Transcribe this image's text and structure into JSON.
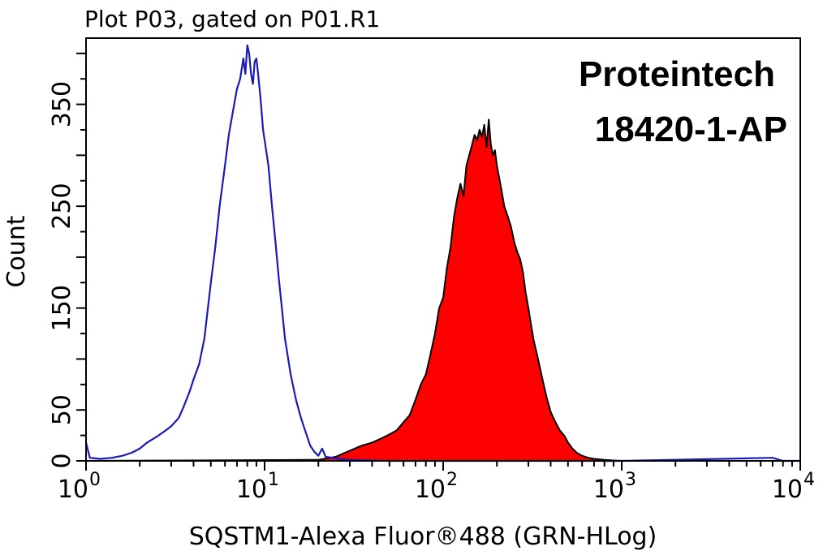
{
  "chart_data": {
    "type": "area",
    "title": "Plot P03, gated on P01.R1",
    "xlabel": "SQSTM1-Alexa Fluor®488 (GRN-HLog)",
    "ylabel": "Count",
    "x_scale": "log",
    "xlim": [
      1,
      10000
    ],
    "ylim": [
      0,
      415
    ],
    "x_ticks": [
      {
        "base": "10",
        "exp": "0",
        "value": 1
      },
      {
        "base": "10",
        "exp": "1",
        "value": 10
      },
      {
        "base": "10",
        "exp": "2",
        "value": 100
      },
      {
        "base": "10",
        "exp": "3",
        "value": 1000
      },
      {
        "base": "10",
        "exp": "4",
        "value": 10000
      }
    ],
    "y_ticks": [
      {
        "label": "0",
        "value": 0
      },
      {
        "label": "50",
        "value": 50
      },
      {
        "label": "150",
        "value": 150
      },
      {
        "label": "250",
        "value": 250
      },
      {
        "label": "350",
        "value": 350
      }
    ],
    "annotations": [
      "Proteintech",
      "18420-1-AP"
    ],
    "series": [
      {
        "role": "control",
        "color": "#1a1ab4",
        "filled": false,
        "x": [
          1,
          1.05,
          1.2,
          1.4,
          1.6,
          1.8,
          2.0,
          2.2,
          2.5,
          2.8,
          3.0,
          3.3,
          3.5,
          3.8,
          4.0,
          4.3,
          4.6,
          5.0,
          5.3,
          5.6,
          6.0,
          6.3,
          6.6,
          7.0,
          7.3,
          7.6,
          7.8,
          8.0,
          8.2,
          8.4,
          8.6,
          8.8,
          9.0,
          9.2,
          9.5,
          9.8,
          10.0,
          10.5,
          11.0,
          11.5,
          12.0,
          12.5,
          13.0,
          14.0,
          15.0,
          16.0,
          17.0,
          18.0,
          19.0,
          20.0,
          21.0,
          22.0,
          24.0,
          26.0,
          30.0,
          50.0,
          100.0,
          1000.0,
          7000.0,
          8000.0,
          10000.0
        ],
        "y": [
          18,
          3,
          2,
          3,
          5,
          8,
          12,
          18,
          24,
          30,
          34,
          42,
          52,
          68,
          80,
          95,
          120,
          175,
          210,
          250,
          290,
          320,
          340,
          365,
          375,
          395,
          380,
          408,
          400,
          380,
          370,
          392,
          395,
          380,
          355,
          325,
          315,
          290,
          250,
          215,
          180,
          150,
          120,
          85,
          60,
          42,
          28,
          15,
          9,
          5,
          12,
          4,
          3,
          2,
          1,
          0,
          0,
          0,
          3,
          0,
          0
        ]
      },
      {
        "role": "SQSTM1",
        "color": "#ff0000",
        "filled": true,
        "x": [
          1,
          20,
          25,
          30,
          35,
          40,
          45,
          50,
          55,
          60,
          65,
          70,
          75,
          80,
          85,
          90,
          95,
          100,
          105,
          110,
          115,
          120,
          125,
          130,
          135,
          140,
          145,
          150,
          155,
          160,
          165,
          170,
          175,
          180,
          185,
          190,
          195,
          200,
          210,
          220,
          230,
          240,
          250,
          260,
          270,
          280,
          290,
          300,
          320,
          340,
          360,
          380,
          400,
          420,
          450,
          480,
          500,
          530,
          560,
          600,
          650,
          700,
          800,
          1000,
          10000
        ],
        "y": [
          0,
          1,
          4,
          10,
          15,
          18,
          22,
          26,
          30,
          38,
          45,
          60,
          75,
          85,
          105,
          125,
          150,
          160,
          190,
          210,
          240,
          258,
          272,
          260,
          290,
          300,
          310,
          320,
          315,
          325,
          318,
          330,
          308,
          335,
          310,
          300,
          305,
          290,
          270,
          250,
          240,
          230,
          215,
          205,
          198,
          185,
          165,
          150,
          120,
          100,
          80,
          62,
          48,
          40,
          30,
          24,
          18,
          12,
          8,
          5,
          3,
          2,
          1,
          0,
          0
        ]
      }
    ]
  }
}
